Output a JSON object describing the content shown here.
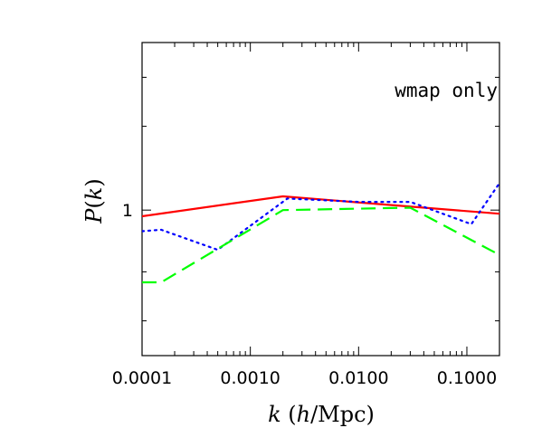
{
  "chart_data": {
    "type": "line",
    "xscale": "log",
    "yscale": "log",
    "xlim": [
      0.0001,
      0.2
    ],
    "ylim": [
      0.3,
      4
    ],
    "xticks": [
      {
        "value": 0.0001,
        "label": "0.0001"
      },
      {
        "value": 0.001,
        "label": "0.0010"
      },
      {
        "value": 0.01,
        "label": "0.0100"
      },
      {
        "value": 0.1,
        "label": "0.1000"
      }
    ],
    "yticks": [
      {
        "value": 1,
        "label": "1"
      }
    ],
    "xlabel_parts": [
      "k",
      " (",
      "h",
      "/Mpc)"
    ],
    "ylabel_parts": [
      "P",
      "(",
      "k",
      ")"
    ],
    "annotation": "wmap only",
    "series": [
      {
        "color": "#ff0000",
        "style": "solid",
        "points": [
          [
            0.0001,
            0.95
          ],
          [
            0.002,
            1.12
          ],
          [
            0.2,
            0.97
          ]
        ]
      },
      {
        "color": "#0000ff",
        "style": "dotted",
        "points": [
          [
            0.0001,
            0.84
          ],
          [
            0.00015,
            0.85
          ],
          [
            0.0005,
            0.72
          ],
          [
            0.0022,
            1.1
          ],
          [
            0.01,
            1.07
          ],
          [
            0.03,
            1.07
          ],
          [
            0.11,
            0.89
          ],
          [
            0.2,
            1.25
          ]
        ]
      },
      {
        "color": "#00ff00",
        "style": "dashed",
        "points": [
          [
            0.0001,
            0.55
          ],
          [
            0.00015,
            0.55
          ],
          [
            0.002,
            1.0
          ],
          [
            0.03,
            1.02
          ],
          [
            0.2,
            0.69
          ]
        ]
      }
    ]
  }
}
